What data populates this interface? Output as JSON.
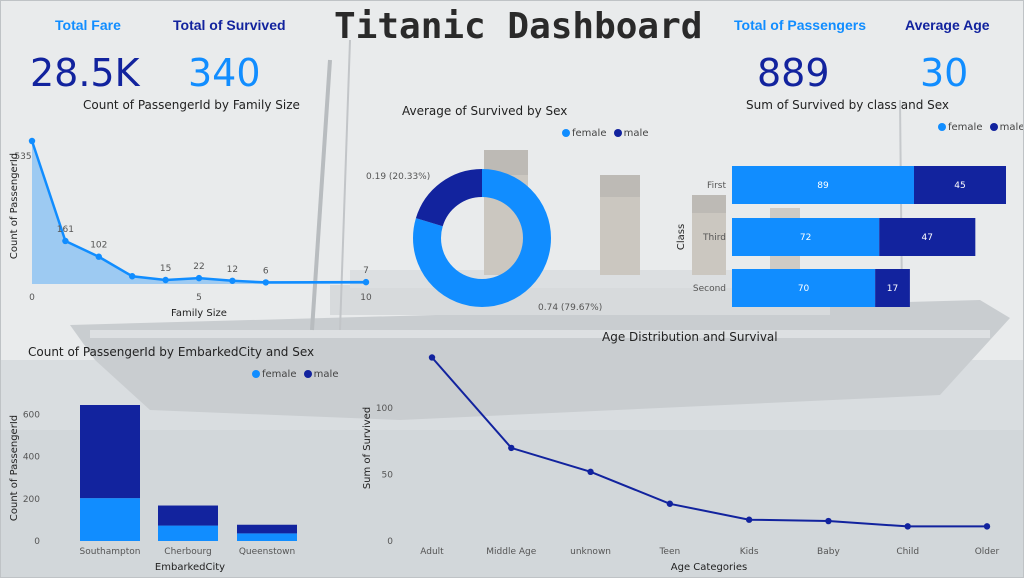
{
  "dashboard": {
    "title": "Titanic Dashboard",
    "colors": {
      "female": "#118dff",
      "male": "#12239e",
      "kpi_dark": "#12239e",
      "kpi_light": "#118dff"
    }
  },
  "kpis": {
    "total_fare": {
      "label": "Total Fare",
      "value": "28.5K"
    },
    "total_survived": {
      "label": "Total of Survived",
      "value": "340"
    },
    "total_passengers": {
      "label": "Total of Passengers",
      "value": "889"
    },
    "average_age": {
      "label": "Average Age",
      "value": "30"
    }
  },
  "legend": {
    "female": "female",
    "male": "male"
  },
  "chart_data": [
    {
      "id": "family",
      "type": "area",
      "title": "Count of PassengerId by Family Size",
      "xlabel": "Family Size",
      "ylabel": "Count of PassengerId",
      "x": [
        0,
        1,
        2,
        3,
        4,
        5,
        6,
        7,
        10
      ],
      "values": [
        535,
        161,
        102,
        29,
        15,
        22,
        12,
        6,
        7
      ],
      "labels": [
        "535",
        "161",
        "102",
        "",
        "15",
        "22",
        "12",
        "6",
        "7"
      ],
      "xticks": [
        "0",
        "5",
        "10"
      ],
      "xlim": [
        0,
        10
      ],
      "ylim": [
        0,
        535
      ]
    },
    {
      "id": "sex_donut",
      "type": "pie",
      "title": "Average of Survived by Sex",
      "categories": [
        "female",
        "male"
      ],
      "values": [
        0.74,
        0.19
      ],
      "labels": [
        "0.74 (79.67%)",
        "0.19 (20.33%)"
      ],
      "legend": "top-right"
    },
    {
      "id": "class_sex",
      "type": "bar",
      "orientation": "horizontal",
      "stacked": true,
      "title": "Sum of Survived by class and Sex",
      "ylabel": "Class",
      "categories": [
        "First",
        "Third",
        "Second"
      ],
      "series": [
        {
          "name": "female",
          "values": [
            89,
            72,
            70
          ]
        },
        {
          "name": "male",
          "values": [
            45,
            47,
            17
          ]
        }
      ],
      "xlim": [
        0,
        134
      ],
      "legend": "top-right"
    },
    {
      "id": "embarked",
      "type": "bar",
      "stacked": true,
      "title": "Count of PassengerId by EmbarkedCity and Sex",
      "xlabel": "EmbarkedCity",
      "ylabel": "Count of PassengerId",
      "categories": [
        "Southampton",
        "Cherbourg",
        "Queenstown"
      ],
      "series": [
        {
          "name": "female",
          "values": [
            203,
            73,
            36
          ]
        },
        {
          "name": "male",
          "values": [
            441,
            95,
            41
          ]
        }
      ],
      "yticks": [
        "0",
        "200",
        "400",
        "600"
      ],
      "ylim": [
        0,
        680
      ],
      "legend": "top"
    },
    {
      "id": "age",
      "type": "line",
      "title": "Age Distribution and Survival",
      "xlabel": "Age Categories",
      "ylabel": "Sum of Survived",
      "categories": [
        "Adult",
        "Middle Age",
        "unknown",
        "Teen",
        "Kids",
        "Baby",
        "Child",
        "Older"
      ],
      "values": [
        138,
        70,
        52,
        28,
        16,
        15,
        11,
        11
      ],
      "yticks": [
        "0",
        "50",
        "100"
      ],
      "ylim": [
        0,
        140
      ]
    }
  ]
}
